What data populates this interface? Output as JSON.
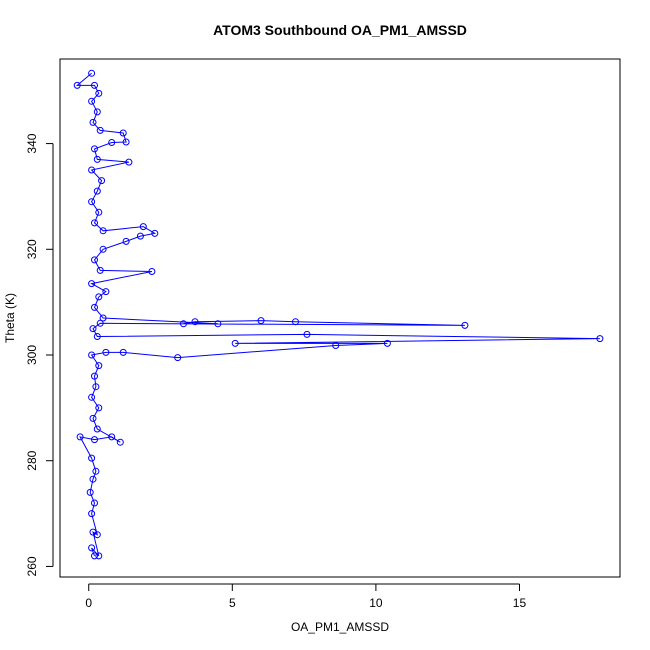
{
  "chart_data": {
    "type": "scatter",
    "title": "ATOM3 Southbound OA_PM1_AMSSD",
    "xlabel": "OA_PM1_AMSSD",
    "ylabel": "Theta (K)",
    "xlim": [
      -1,
      18.5
    ],
    "ylim": [
      258,
      356
    ],
    "xticks": [
      0,
      5,
      10,
      15
    ],
    "yticks": [
      260,
      280,
      300,
      320,
      340
    ],
    "grid": false,
    "legend": "none",
    "point_style": "open-circle-connected",
    "series": [
      {
        "color": "#0000ff",
        "points": [
          [
            0.2,
            262
          ],
          [
            0.1,
            263.5
          ],
          [
            0.35,
            262
          ],
          [
            0.15,
            266.5
          ],
          [
            0.3,
            266
          ],
          [
            0.1,
            270
          ],
          [
            0.2,
            272
          ],
          [
            0.05,
            274
          ],
          [
            0.15,
            276.5
          ],
          [
            0.25,
            278
          ],
          [
            0.1,
            280.5
          ],
          [
            -0.3,
            284.5
          ],
          [
            0.2,
            284
          ],
          [
            0.8,
            284.5
          ],
          [
            1.1,
            283.5
          ],
          [
            0.3,
            286
          ],
          [
            0.15,
            288
          ],
          [
            0.35,
            290
          ],
          [
            0.1,
            292
          ],
          [
            0.25,
            294
          ],
          [
            0.2,
            296
          ],
          [
            0.35,
            298
          ],
          [
            0.1,
            300
          ],
          [
            0.6,
            300.5
          ],
          [
            1.2,
            300.5
          ],
          [
            3.1,
            299.5
          ],
          [
            8.6,
            301.8
          ],
          [
            10.4,
            302.2
          ],
          [
            5.1,
            302.2
          ],
          [
            17.8,
            303.1
          ],
          [
            7.6,
            303.9
          ],
          [
            0.3,
            303.5
          ],
          [
            0.15,
            305
          ],
          [
            0.4,
            306
          ],
          [
            13.1,
            305.6
          ],
          [
            7.2,
            306.3
          ],
          [
            6.0,
            306.5
          ],
          [
            3.7,
            306.3
          ],
          [
            3.3,
            305.9
          ],
          [
            4.5,
            305.9
          ],
          [
            0.5,
            307
          ],
          [
            0.2,
            309
          ],
          [
            0.35,
            311
          ],
          [
            0.6,
            312
          ],
          [
            0.1,
            313.5
          ],
          [
            2.2,
            315.8
          ],
          [
            0.4,
            316
          ],
          [
            0.2,
            318
          ],
          [
            0.5,
            320
          ],
          [
            1.3,
            321.5
          ],
          [
            1.8,
            322.5
          ],
          [
            2.3,
            323
          ],
          [
            1.9,
            324.3
          ],
          [
            0.5,
            323.5
          ],
          [
            0.2,
            325
          ],
          [
            0.35,
            327
          ],
          [
            0.1,
            329
          ],
          [
            0.3,
            331
          ],
          [
            0.45,
            333
          ],
          [
            0.1,
            335
          ],
          [
            1.4,
            336.5
          ],
          [
            0.3,
            337
          ],
          [
            0.2,
            339
          ],
          [
            0.8,
            340.2
          ],
          [
            1.3,
            340.3
          ],
          [
            1.2,
            342
          ],
          [
            0.4,
            342.5
          ],
          [
            0.15,
            344
          ],
          [
            0.3,
            346
          ],
          [
            0.1,
            348
          ],
          [
            0.35,
            349.5
          ],
          [
            0.2,
            351
          ],
          [
            -0.4,
            351
          ],
          [
            0.1,
            353.3
          ]
        ]
      }
    ]
  }
}
